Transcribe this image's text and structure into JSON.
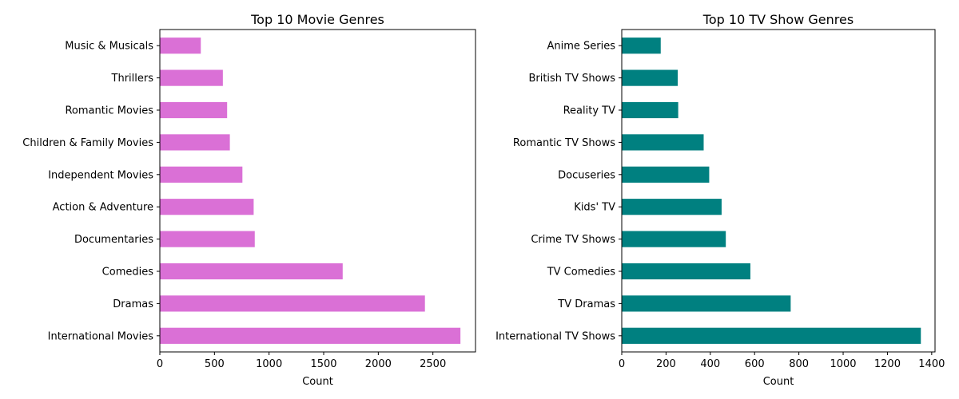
{
  "chart_data": [
    {
      "type": "bar",
      "orientation": "horizontal",
      "title": "Top 10 Movie Genres",
      "xlabel": "Count",
      "ylabel": "",
      "color": "#da70d6",
      "xlim": [
        0,
        2890
      ],
      "xticks": [
        0,
        500,
        1000,
        1500,
        2000,
        2500
      ],
      "categories": [
        "International Movies",
        "Dramas",
        "Comedies",
        "Documentaries",
        "Action & Adventure",
        "Independent Movies",
        "Children & Family Movies",
        "Romantic Movies",
        "Thrillers",
        "Music & Musicals"
      ],
      "values": [
        2752,
        2427,
        1674,
        869,
        859,
        756,
        641,
        616,
        577,
        375
      ],
      "grid": false
    },
    {
      "type": "bar",
      "orientation": "horizontal",
      "title": "Top 10 TV Show Genres",
      "xlabel": "Count",
      "ylabel": "",
      "color": "#008080",
      "xlim": [
        0,
        1415
      ],
      "xticks": [
        0,
        200,
        400,
        600,
        800,
        1000,
        1200,
        1400
      ],
      "categories": [
        "International TV Shows",
        "TV Dramas",
        "TV Comedies",
        "Crime TV Shows",
        "Kids' TV",
        "Docuseries",
        "Romantic TV Shows",
        "Reality TV",
        "British TV Shows",
        "Anime Series"
      ],
      "values": [
        1351,
        763,
        581,
        470,
        451,
        395,
        370,
        255,
        253,
        176
      ],
      "grid": false
    }
  ]
}
